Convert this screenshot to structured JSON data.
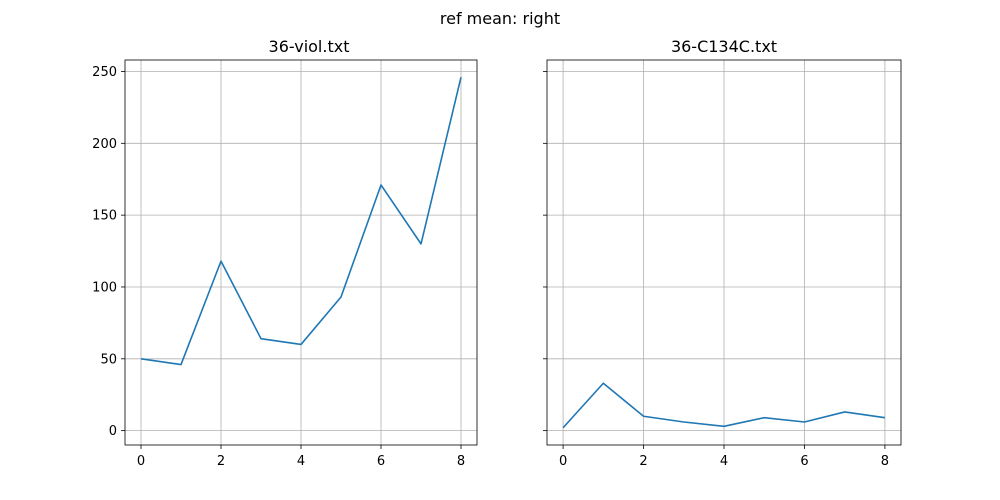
{
  "suptitle": "ref mean: right",
  "colors": {
    "line": "#1f77b4",
    "grid": "#b0b0b0",
    "axes": "#000000"
  },
  "shared_y": true,
  "chart_data": [
    {
      "type": "line",
      "title": "36-viol.txt",
      "xlabel": "",
      "ylabel": "",
      "x": [
        0,
        1,
        2,
        3,
        4,
        5,
        6,
        7,
        8
      ],
      "series": [
        {
          "values": [
            50,
            46,
            118,
            64,
            60,
            93,
            171,
            130,
            246
          ]
        }
      ],
      "xlim": [
        -0.4,
        8.4
      ],
      "ylim": [
        -10,
        258
      ],
      "xticks": [
        0,
        2,
        4,
        6,
        8
      ],
      "yticks": [
        0,
        50,
        100,
        150,
        200,
        250
      ],
      "grid": true,
      "show_yticklabels": true
    },
    {
      "type": "line",
      "title": "36-C134C.txt",
      "xlabel": "",
      "ylabel": "",
      "x": [
        0,
        1,
        2,
        3,
        4,
        5,
        6,
        7,
        8
      ],
      "series": [
        {
          "values": [
            2,
            33,
            10,
            6,
            3,
            9,
            6,
            13,
            9
          ]
        }
      ],
      "xlim": [
        -0.4,
        8.4
      ],
      "ylim": [
        -10,
        258
      ],
      "xticks": [
        0,
        2,
        4,
        6,
        8
      ],
      "yticks": [
        0,
        50,
        100,
        150,
        200,
        250
      ],
      "grid": true,
      "show_yticklabels": false
    }
  ]
}
